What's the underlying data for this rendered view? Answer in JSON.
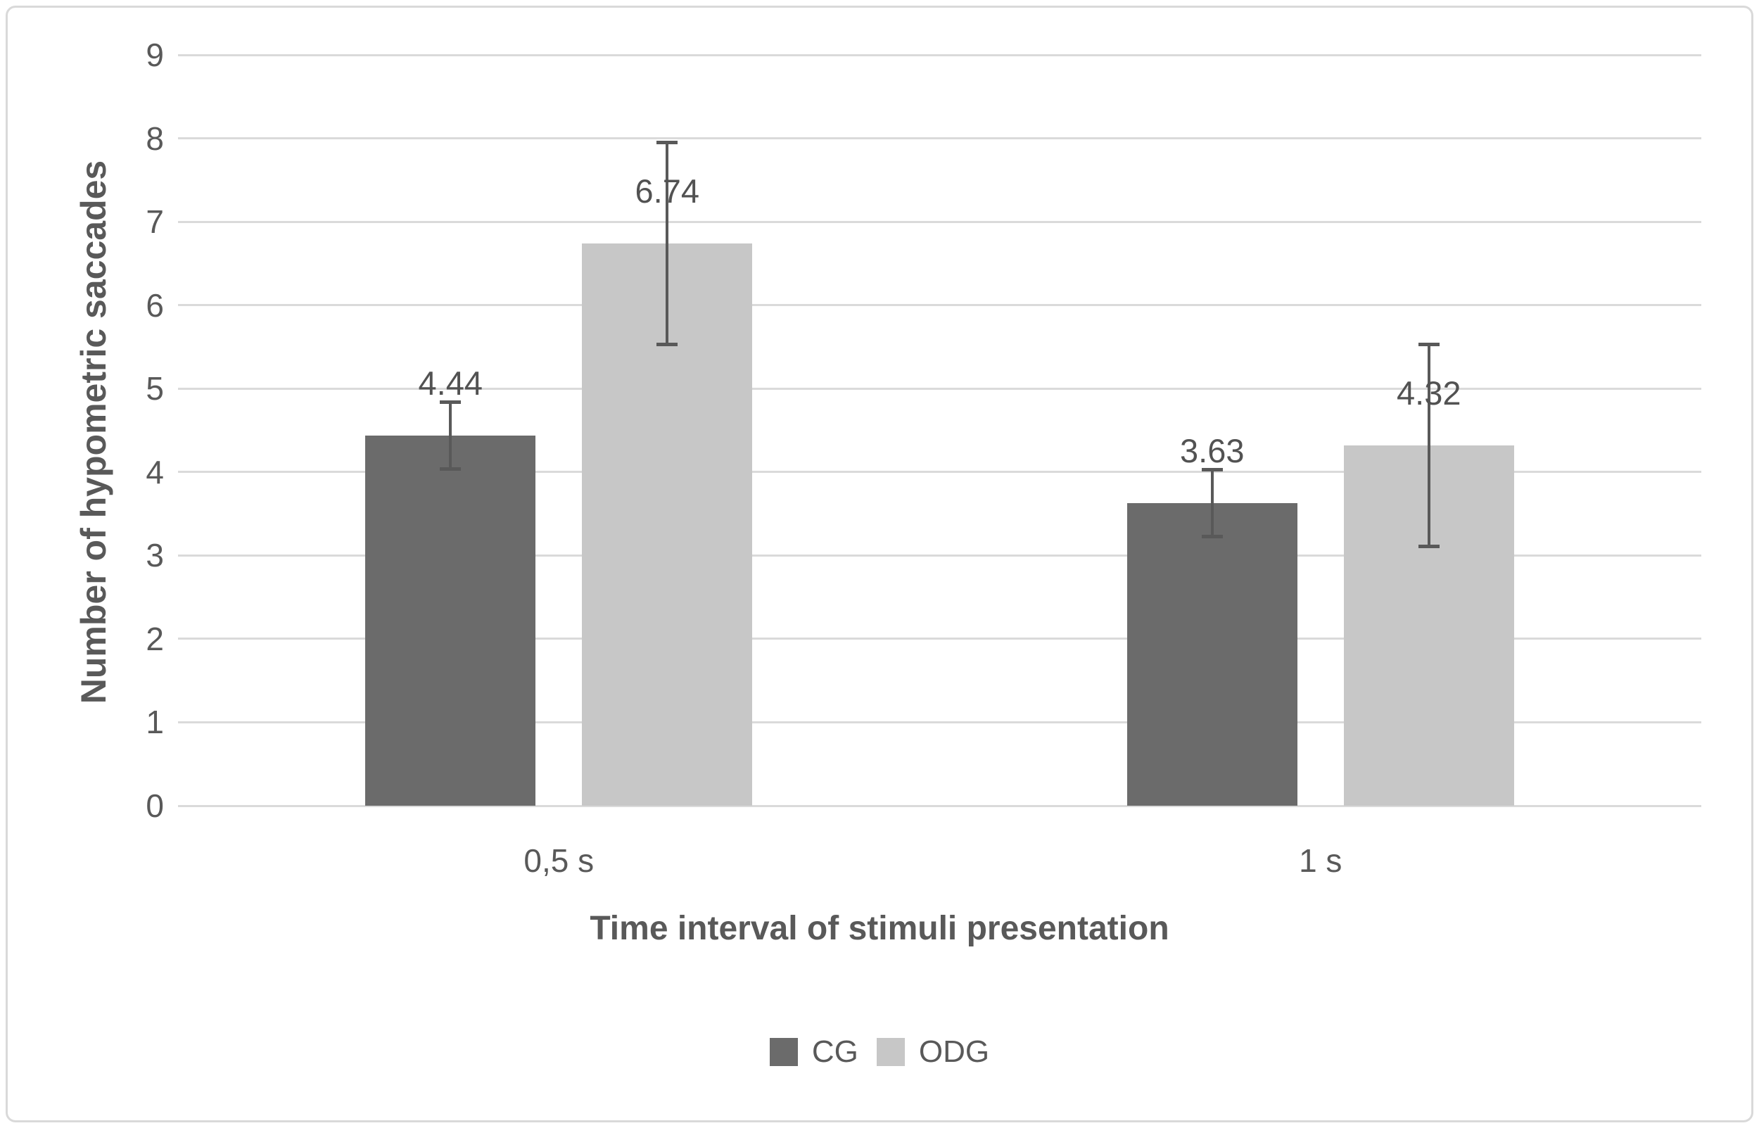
{
  "frame": {
    "background": "#ffffff",
    "border_color": "#d9d9d9"
  },
  "chart_data": {
    "type": "bar",
    "title": "",
    "categories": [
      "0,5 s",
      "1 s"
    ],
    "series": [
      {
        "name": "CG",
        "color": "#6b6b6b",
        "values": [
          4.44,
          3.63
        ],
        "labels": [
          "4.44",
          "3.63"
        ],
        "error": [
          0.4,
          0.4
        ]
      },
      {
        "name": "ODG",
        "color": "#c7c7c7",
        "values": [
          6.74,
          4.32
        ],
        "labels": [
          "6.74",
          "4.32"
        ],
        "error": [
          1.21,
          1.21
        ]
      }
    ],
    "xlabel": "Time interval of stimuli presentation",
    "ylabel": "Number of hypometric saccades",
    "ylim": [
      0,
      9
    ],
    "yticks": [
      0,
      1,
      2,
      3,
      4,
      5,
      6,
      7,
      8,
      9
    ],
    "grid": true,
    "gridline_color": "#dadada",
    "error_bar_color": "#595959",
    "legend_position": "bottom"
  }
}
